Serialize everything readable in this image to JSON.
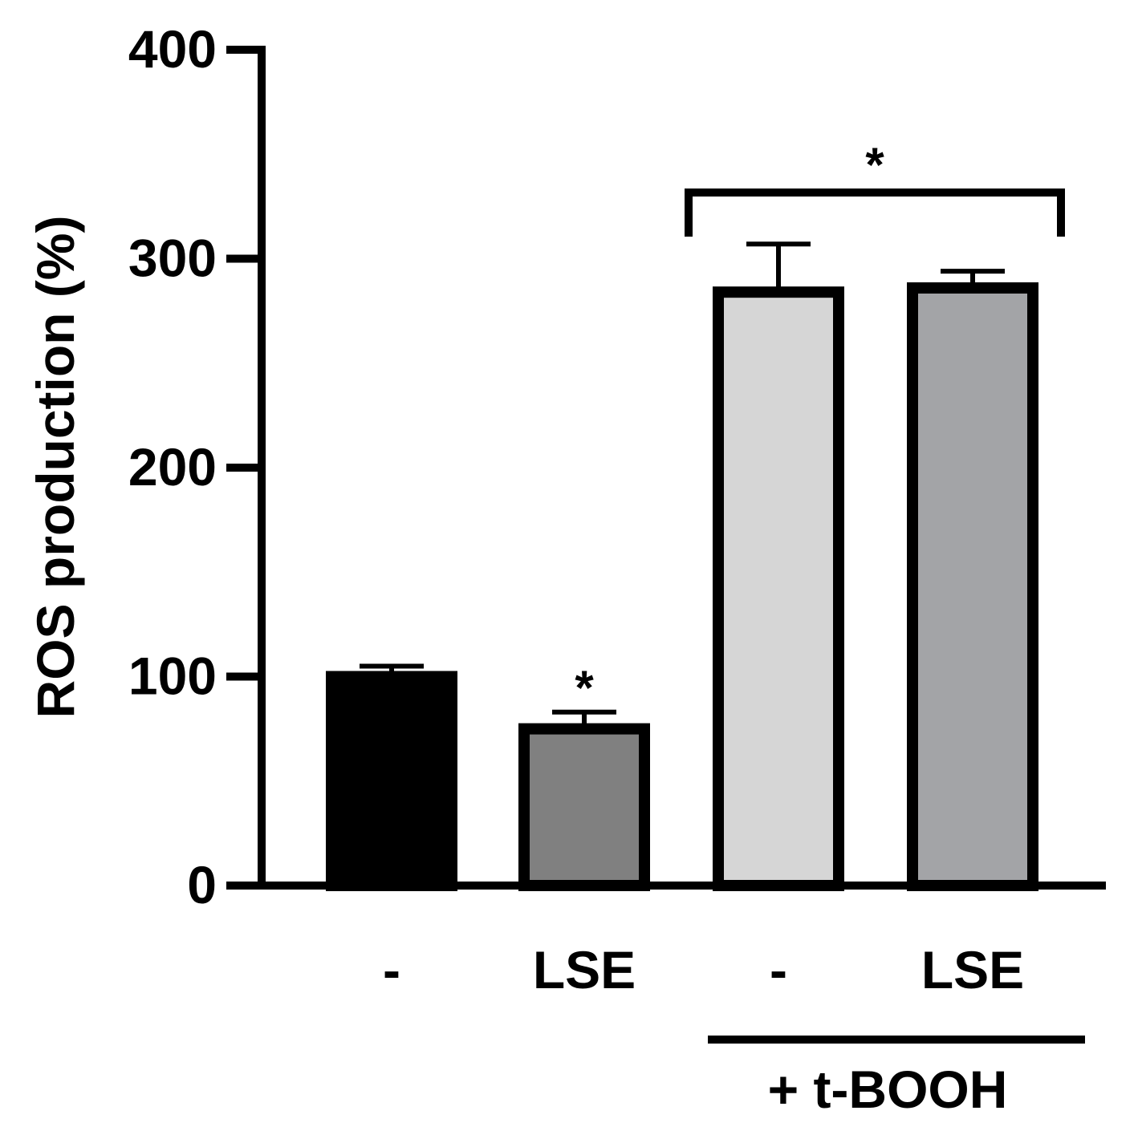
{
  "chart_data": {
    "type": "bar",
    "ylabel": "ROS production (%)",
    "xlabel": "",
    "ylim": [
      0,
      400
    ],
    "yticks": [
      0,
      100,
      200,
      300,
      400
    ],
    "categories": [
      "-",
      "LSE",
      "-",
      "LSE"
    ],
    "values": [
      100,
      75,
      284,
      286
    ],
    "errors": [
      5,
      8,
      23,
      8
    ],
    "bar_colors": [
      "#000000",
      "#808080",
      "#d6d6d6",
      "#a3a4a7"
    ],
    "annotations": [
      {
        "text": "*",
        "bar_index": 1
      },
      {
        "text": "*",
        "bracket_bars": [
          2,
          3
        ]
      }
    ],
    "group_label": {
      "text": "+ t-BOOH",
      "bars": [
        2,
        3
      ]
    },
    "grid": false,
    "legend": "none"
  }
}
